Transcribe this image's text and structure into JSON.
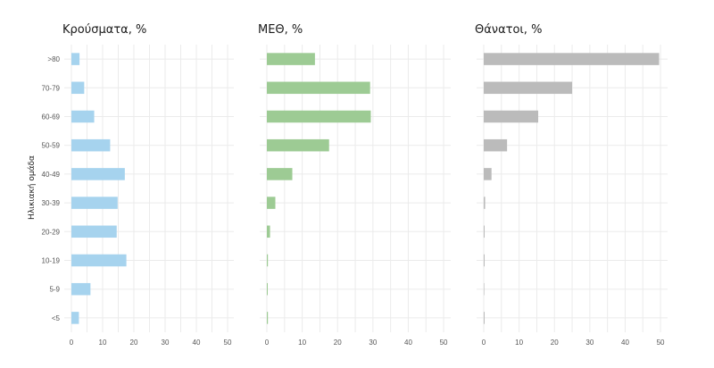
{
  "chart_data": {
    "type": "bar",
    "orientation": "horizontal",
    "ylabel": "Ηλικιακή ομάδα",
    "categories": [
      ">80",
      "70-79",
      "60-69",
      "50-59",
      "40-49",
      "30-39",
      "20-29",
      "10-19",
      "5-9",
      "<5"
    ],
    "grid": true,
    "panels": [
      {
        "title": "Κρούσματα, %",
        "color": "#a6d3ee",
        "xlim": [
          0,
          52
        ],
        "xticks": [
          0,
          10,
          20,
          30,
          40,
          50
        ],
        "values": [
          2.6,
          4.1,
          7.3,
          12.4,
          17.1,
          14.8,
          14.5,
          17.6,
          6.1,
          2.4
        ]
      },
      {
        "title": "ΜΕΘ, %",
        "color": "#9dcb94",
        "xlim": [
          0,
          52
        ],
        "xticks": [
          0,
          10,
          20,
          30,
          40,
          50
        ],
        "values": [
          13.6,
          29.2,
          29.4,
          17.6,
          7.2,
          2.4,
          0.9,
          0.3,
          0.2,
          0.3
        ]
      },
      {
        "title": "Θάνατοι, %",
        "color": "#bbbbbb",
        "xlim": [
          0,
          52
        ],
        "xticks": [
          0,
          10,
          20,
          30,
          40,
          50
        ],
        "values": [
          49.6,
          25.0,
          15.4,
          6.6,
          2.2,
          0.4,
          0.1,
          0.1,
          0.0,
          0.1
        ]
      }
    ]
  }
}
